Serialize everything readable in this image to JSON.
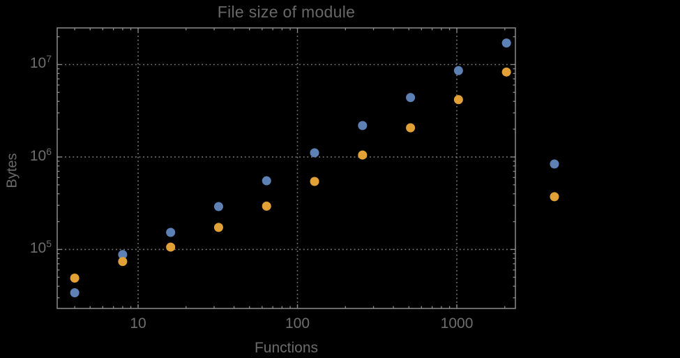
{
  "title": "File size of module",
  "background": "#000000",
  "text_colors": {
    "title": "#686868",
    "axis_labels": "#6b6b6b",
    "tick_labels": "#6e6e6e"
  },
  "frame_color": "#8c8c8c",
  "grid_color": "#7b7b7b",
  "chart_data": {
    "type": "scatter",
    "title": "File size of module",
    "xlabel": "Functions",
    "ylabel": "Bytes",
    "x_scale": "log",
    "y_scale": "log",
    "grid": "dotted, at decade lines",
    "legend": "none",
    "xlim": [
      3.106,
      2331
    ],
    "ylim": [
      23000,
      24900000
    ],
    "x_ticks": [
      10,
      100,
      1000
    ],
    "x_tick_labels": [
      "10",
      "100",
      "1000"
    ],
    "y_ticks": [
      100000,
      1000000,
      10000000
    ],
    "y_tick_labels": [
      {
        "base": "10",
        "exp": "5"
      },
      {
        "base": "10",
        "exp": "6"
      },
      {
        "base": "10",
        "exp": "7"
      }
    ],
    "x": [
      4,
      8,
      16,
      32,
      64,
      128,
      256,
      512,
      1024,
      2048,
      4096
    ],
    "series": [
      {
        "name": "blue-series",
        "color": "#5E81B5",
        "values": [
          34000,
          88000,
          153000,
          291000,
          553000,
          1110000,
          2190000,
          4400000,
          8600000,
          17100000,
          840000
        ]
      },
      {
        "name": "orange-series",
        "color": "#E2A136",
        "values": [
          49000,
          74000,
          106000,
          173000,
          294000,
          544000,
          1050000,
          2070000,
          4170000,
          8300000,
          372000
        ]
      }
    ],
    "note_outside_frame": "points at x=4096 are drawn beyond the right frame edge"
  }
}
